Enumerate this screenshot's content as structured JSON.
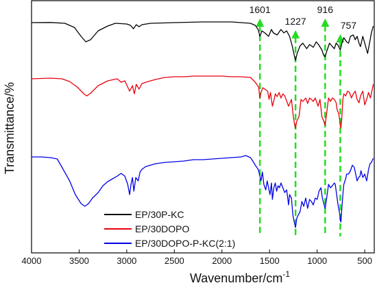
{
  "chart_data": {
    "type": "line",
    "xlabel": "Wavenumber/cm",
    "xlabel_superscript": "-1",
    "ylabel": "Transmittance/%",
    "xlim": [
      4000,
      400
    ],
    "x_reversed": true,
    "xticks": [
      4000,
      3500,
      3000,
      2500,
      2000,
      1500,
      1000,
      500
    ],
    "y_ticks_shown": false,
    "grid": false,
    "legend_position": "lower-left",
    "series": [
      {
        "name": "EP/30P-KC",
        "color": "#000000",
        "offset": 0,
        "points": [
          [
            4000,
            0
          ],
          [
            3800,
            0.2
          ],
          [
            3650,
            -1
          ],
          [
            3550,
            -7
          ],
          [
            3480,
            -20
          ],
          [
            3430,
            -28
          ],
          [
            3380,
            -25
          ],
          [
            3300,
            -12
          ],
          [
            3200,
            -5
          ],
          [
            3120,
            -1
          ],
          [
            3000,
            -2
          ],
          [
            2960,
            -4
          ],
          [
            2930,
            -9
          ],
          [
            2900,
            -3
          ],
          [
            2870,
            -6
          ],
          [
            2840,
            -3
          ],
          [
            2750,
            -1
          ],
          [
            2500,
            0
          ],
          [
            2200,
            1
          ],
          [
            2000,
            1
          ],
          [
            1900,
            1
          ],
          [
            1800,
            0
          ],
          [
            1700,
            -1
          ],
          [
            1650,
            -4
          ],
          [
            1620,
            -10
          ],
          [
            1601,
            -20
          ],
          [
            1580,
            -12
          ],
          [
            1550,
            -15
          ],
          [
            1510,
            -20
          ],
          [
            1480,
            -10
          ],
          [
            1460,
            -15
          ],
          [
            1420,
            -18
          ],
          [
            1380,
            -10
          ],
          [
            1350,
            -15
          ],
          [
            1320,
            -12
          ],
          [
            1290,
            -20
          ],
          [
            1260,
            -35
          ],
          [
            1240,
            -48
          ],
          [
            1227,
            -55
          ],
          [
            1210,
            -45
          ],
          [
            1180,
            -34
          ],
          [
            1150,
            -30
          ],
          [
            1110,
            -38
          ],
          [
            1080,
            -32
          ],
          [
            1040,
            -36
          ],
          [
            1010,
            -28
          ],
          [
            980,
            -33
          ],
          [
            950,
            -40
          ],
          [
            930,
            -48
          ],
          [
            916,
            -50
          ],
          [
            900,
            -42
          ],
          [
            870,
            -30
          ],
          [
            840,
            -35
          ],
          [
            820,
            -38
          ],
          [
            800,
            -30
          ],
          [
            780,
            -33
          ],
          [
            757,
            -40
          ],
          [
            740,
            -30
          ],
          [
            720,
            -22
          ],
          [
            690,
            -28
          ],
          [
            670,
            -30
          ],
          [
            650,
            -20
          ],
          [
            620,
            -18
          ],
          [
            600,
            -25
          ],
          [
            580,
            -20
          ],
          [
            560,
            -30
          ],
          [
            545,
            -35
          ],
          [
            520,
            -20
          ],
          [
            490,
            -35
          ],
          [
            470,
            -45
          ],
          [
            450,
            -30
          ],
          [
            430,
            -15
          ],
          [
            410,
            -5
          ]
        ]
      },
      {
        "name": "EP/30DOPO",
        "color": "#e8000b",
        "offset": -80,
        "points": [
          [
            4000,
            0
          ],
          [
            3800,
            1
          ],
          [
            3680,
            0
          ],
          [
            3600,
            -4
          ],
          [
            3520,
            -12
          ],
          [
            3450,
            -22
          ],
          [
            3420,
            -25
          ],
          [
            3380,
            -21
          ],
          [
            3300,
            -10
          ],
          [
            3200,
            -3
          ],
          [
            3100,
            0
          ],
          [
            3060,
            -5
          ],
          [
            3020,
            -3
          ],
          [
            2970,
            -18
          ],
          [
            2940,
            -10
          ],
          [
            2920,
            -22
          ],
          [
            2900,
            -8
          ],
          [
            2870,
            -15
          ],
          [
            2840,
            -7
          ],
          [
            2800,
            -5
          ],
          [
            2700,
            -1
          ],
          [
            2600,
            2
          ],
          [
            2500,
            3
          ],
          [
            2400,
            3
          ],
          [
            2300,
            4
          ],
          [
            2200,
            4
          ],
          [
            2000,
            4
          ],
          [
            1900,
            3
          ],
          [
            1800,
            3
          ],
          [
            1700,
            2
          ],
          [
            1650,
            -5
          ],
          [
            1615,
            -12
          ],
          [
            1601,
            -28
          ],
          [
            1590,
            -20
          ],
          [
            1570,
            -13
          ],
          [
            1550,
            -15
          ],
          [
            1520,
            -18
          ],
          [
            1505,
            -30
          ],
          [
            1490,
            -20
          ],
          [
            1470,
            -40
          ],
          [
            1455,
            -32
          ],
          [
            1440,
            -22
          ],
          [
            1420,
            -26
          ],
          [
            1400,
            -20
          ],
          [
            1380,
            -28
          ],
          [
            1360,
            -22
          ],
          [
            1340,
            -25
          ],
          [
            1300,
            -40
          ],
          [
            1270,
            -30
          ],
          [
            1250,
            -55
          ],
          [
            1235,
            -68
          ],
          [
            1227,
            -72
          ],
          [
            1215,
            -62
          ],
          [
            1190,
            -55
          ],
          [
            1170,
            -30
          ],
          [
            1150,
            -33
          ],
          [
            1120,
            -28
          ],
          [
            1100,
            -36
          ],
          [
            1080,
            -28
          ],
          [
            1060,
            -30
          ],
          [
            1040,
            -33
          ],
          [
            1020,
            -28
          ],
          [
            990,
            -40
          ],
          [
            970,
            -30
          ],
          [
            950,
            -55
          ],
          [
            930,
            -62
          ],
          [
            916,
            -68
          ],
          [
            900,
            -50
          ],
          [
            880,
            -28
          ],
          [
            860,
            -33
          ],
          [
            840,
            -28
          ],
          [
            820,
            -30
          ],
          [
            800,
            -35
          ],
          [
            790,
            -45
          ],
          [
            775,
            -50
          ],
          [
            765,
            -58
          ],
          [
            757,
            -68
          ],
          [
            750,
            -72
          ],
          [
            740,
            -55
          ],
          [
            730,
            -30
          ],
          [
            720,
            -22
          ],
          [
            700,
            -25
          ],
          [
            680,
            -18
          ],
          [
            660,
            -20
          ],
          [
            640,
            -28
          ],
          [
            620,
            -22
          ],
          [
            600,
            -18
          ],
          [
            580,
            -30
          ],
          [
            560,
            -35
          ],
          [
            545,
            -25
          ],
          [
            520,
            -18
          ],
          [
            500,
            -38
          ],
          [
            480,
            -30
          ],
          [
            460,
            -20
          ],
          [
            440,
            -28
          ],
          [
            420,
            -15
          ],
          [
            410,
            -8
          ]
        ]
      },
      {
        "name": "EP/30DOPO-P-KC(2:1)",
        "color": "#0000e6",
        "offset": -195,
        "points": [
          [
            4000,
            0
          ],
          [
            3900,
            0
          ],
          [
            3800,
            -1
          ],
          [
            3730,
            -3
          ],
          [
            3680,
            -15
          ],
          [
            3600,
            -35
          ],
          [
            3540,
            -55
          ],
          [
            3480,
            -68
          ],
          [
            3440,
            -72
          ],
          [
            3400,
            -68
          ],
          [
            3360,
            -60
          ],
          [
            3300,
            -52
          ],
          [
            3250,
            -42
          ],
          [
            3200,
            -36
          ],
          [
            3150,
            -32
          ],
          [
            3100,
            -28
          ],
          [
            3060,
            -24
          ],
          [
            3020,
            -28
          ],
          [
            2990,
            -40
          ],
          [
            2970,
            -55
          ],
          [
            2955,
            -40
          ],
          [
            2940,
            -30
          ],
          [
            2925,
            -50
          ],
          [
            2905,
            -30
          ],
          [
            2880,
            -35
          ],
          [
            2860,
            -22
          ],
          [
            2840,
            -18
          ],
          [
            2800,
            -14
          ],
          [
            2700,
            -10
          ],
          [
            2600,
            -8
          ],
          [
            2500,
            -7
          ],
          [
            2400,
            -6
          ],
          [
            2300,
            -4
          ],
          [
            2200,
            -4
          ],
          [
            2100,
            -3
          ],
          [
            2000,
            -2
          ],
          [
            1900,
            -1
          ],
          [
            1800,
            0
          ],
          [
            1750,
            2
          ],
          [
            1700,
            -1
          ],
          [
            1680,
            -5
          ],
          [
            1650,
            -12
          ],
          [
            1620,
            -18
          ],
          [
            1601,
            -28
          ],
          [
            1590,
            -35
          ],
          [
            1575,
            -22
          ],
          [
            1560,
            -40
          ],
          [
            1540,
            -48
          ],
          [
            1525,
            -35
          ],
          [
            1510,
            -45
          ],
          [
            1495,
            -55
          ],
          [
            1480,
            -38
          ],
          [
            1470,
            -62
          ],
          [
            1455,
            -45
          ],
          [
            1440,
            -38
          ],
          [
            1425,
            -50
          ],
          [
            1410,
            -42
          ],
          [
            1395,
            -45
          ],
          [
            1380,
            -38
          ],
          [
            1360,
            -45
          ],
          [
            1340,
            -52
          ],
          [
            1320,
            -48
          ],
          [
            1300,
            -70
          ],
          [
            1290,
            -55
          ],
          [
            1270,
            -60
          ],
          [
            1255,
            -85
          ],
          [
            1240,
            -95
          ],
          [
            1227,
            -103
          ],
          [
            1215,
            -90
          ],
          [
            1200,
            -85
          ],
          [
            1180,
            -80
          ],
          [
            1160,
            -65
          ],
          [
            1140,
            -72
          ],
          [
            1120,
            -60
          ],
          [
            1100,
            -75
          ],
          [
            1080,
            -62
          ],
          [
            1060,
            -65
          ],
          [
            1040,
            -70
          ],
          [
            1020,
            -60
          ],
          [
            1000,
            -62
          ],
          [
            980,
            -50
          ],
          [
            960,
            -45
          ],
          [
            945,
            -60
          ],
          [
            930,
            -68
          ],
          [
            916,
            -75
          ],
          [
            900,
            -60
          ],
          [
            880,
            -40
          ],
          [
            860,
            -45
          ],
          [
            840,
            -42
          ],
          [
            820,
            -38
          ],
          [
            810,
            -40
          ],
          [
            795,
            -55
          ],
          [
            780,
            -70
          ],
          [
            770,
            -78
          ],
          [
            760,
            -85
          ],
          [
            757,
            -92
          ],
          [
            750,
            -95
          ],
          [
            742,
            -78
          ],
          [
            730,
            -55
          ],
          [
            720,
            -40
          ],
          [
            700,
            -32
          ],
          [
            690,
            -25
          ],
          [
            670,
            -25
          ],
          [
            650,
            -20
          ],
          [
            630,
            -12
          ],
          [
            610,
            -15
          ],
          [
            595,
            -25
          ],
          [
            580,
            -35
          ],
          [
            565,
            -30
          ],
          [
            550,
            -28
          ],
          [
            540,
            -20
          ],
          [
            520,
            -30
          ],
          [
            500,
            -25
          ],
          [
            480,
            -35
          ],
          [
            460,
            -18
          ],
          [
            445,
            -10
          ],
          [
            430,
            -8
          ],
          [
            420,
            -5
          ],
          [
            410,
            -2
          ]
        ]
      }
    ],
    "annotations": [
      {
        "label": "1601",
        "x": 1601
      },
      {
        "label": "1227",
        "x": 1227
      },
      {
        "label": "916",
        "x": 916
      },
      {
        "label": "757",
        "x": 757
      }
    ],
    "annotation_color": "#22dd22"
  }
}
